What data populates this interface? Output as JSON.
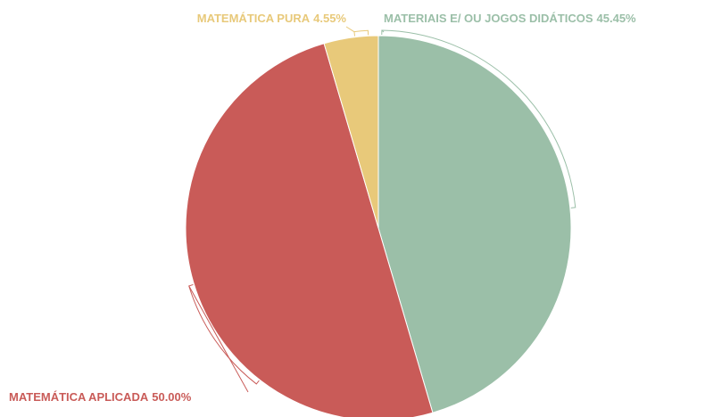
{
  "chart_data": {
    "type": "pie",
    "categories": [
      "MATERIAIS E/ OU JOGOS DIDÁTICOS",
      "MATEMÁTICA APLICADA",
      "MATEMÁTICA PURA"
    ],
    "values": [
      45.45,
      50.0,
      4.55
    ],
    "value_labels": [
      "45.45%",
      "50.00%",
      "4.55%"
    ],
    "colors": [
      "#9bbfa8",
      "#c95b58",
      "#e8c97a"
    ]
  }
}
